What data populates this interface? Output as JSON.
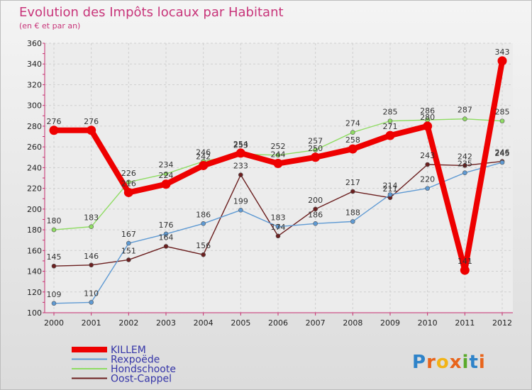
{
  "chart_data": {
    "type": "line",
    "title": "Evolution des Impôts locaux par Habitant",
    "subtitle": "(en € et par an)",
    "xlabel": "",
    "ylabel": "",
    "ylim": [
      100,
      360
    ],
    "yticks": [
      100,
      120,
      140,
      160,
      180,
      200,
      220,
      240,
      260,
      280,
      300,
      320,
      340,
      360
    ],
    "categories": [
      "2000",
      "2001",
      "2002",
      "2003",
      "2004",
      "2005",
      "2006",
      "2007",
      "2008",
      "2009",
      "2010",
      "2011",
      "2012"
    ],
    "grid": true,
    "legend_position": "bottom-left",
    "series": [
      {
        "name": "KILLEM",
        "color": "#ee0000",
        "values": [
          276,
          276,
          216,
          224,
          242,
          254,
          244,
          250,
          258,
          271,
          280,
          141,
          343
        ],
        "labels": [
          "276",
          "276",
          "216",
          "224",
          "242",
          "254",
          "244",
          "250",
          "258",
          "271",
          "280",
          "141",
          "343"
        ]
      },
      {
        "name": "Rexpoëde",
        "color": "#5f9ad3",
        "values": [
          109,
          110,
          167,
          176,
          186,
          199,
          183,
          186,
          188,
          214,
          220,
          235,
          245
        ],
        "labels": [
          "109",
          "110",
          "167",
          "176",
          "186",
          "199",
          "183",
          "186",
          "188",
          "214",
          "220",
          "235",
          "245"
        ]
      },
      {
        "name": "Hondschoote",
        "color": "#8fdc63",
        "values": [
          180,
          183,
          226,
          234,
          246,
          253,
          252,
          257,
          274,
          285,
          286,
          287,
          285
        ],
        "labels": [
          "180",
          "183",
          "226",
          "234",
          "246",
          "253",
          "252",
          "257",
          "274",
          "285",
          "286",
          "287",
          "285"
        ]
      },
      {
        "name": "Oost-Cappel",
        "color": "#6b1f1f",
        "values": [
          145,
          146,
          151,
          164,
          156,
          233,
          174,
          200,
          217,
          211,
          243,
          242,
          246
        ],
        "labels": [
          "145",
          "146",
          "151",
          "164",
          "156",
          "233",
          "174",
          "200",
          "217",
          "211",
          "243",
          "242",
          "246"
        ]
      }
    ]
  },
  "brand": {
    "text": "Proxiti",
    "letters": [
      "P",
      "r",
      "o",
      "x",
      "i",
      "t",
      "i"
    ],
    "colors": [
      "#2e83c9",
      "#e8641b",
      "#f2b417",
      "#e8641b",
      "#5aaa2b",
      "#2e83c9",
      "#e8641b"
    ]
  }
}
